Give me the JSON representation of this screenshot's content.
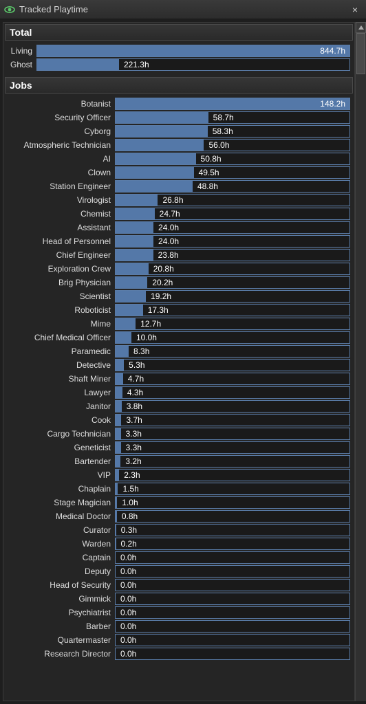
{
  "window": {
    "title": "Tracked Playtime",
    "close": "×"
  },
  "colors": {
    "bar_fill": "#5478a8",
    "bar_border": "#5a7ca8",
    "bg": "#1a1a1a"
  },
  "sections": {
    "total": {
      "header": "Total",
      "max": 844.7,
      "rows": [
        {
          "label": "Living",
          "value": 844.7,
          "text": "844.7h"
        },
        {
          "label": "Ghost",
          "value": 221.3,
          "text": "221.3h"
        }
      ]
    },
    "jobs": {
      "header": "Jobs",
      "max": 148.2,
      "rows": [
        {
          "label": "Botanist",
          "value": 148.2,
          "text": "148.2h"
        },
        {
          "label": "Security Officer",
          "value": 58.7,
          "text": "58.7h"
        },
        {
          "label": "Cyborg",
          "value": 58.3,
          "text": "58.3h"
        },
        {
          "label": "Atmospheric Technician",
          "value": 56.0,
          "text": "56.0h"
        },
        {
          "label": "AI",
          "value": 50.8,
          "text": "50.8h"
        },
        {
          "label": "Clown",
          "value": 49.5,
          "text": "49.5h"
        },
        {
          "label": "Station Engineer",
          "value": 48.8,
          "text": "48.8h"
        },
        {
          "label": "Virologist",
          "value": 26.8,
          "text": "26.8h"
        },
        {
          "label": "Chemist",
          "value": 24.7,
          "text": "24.7h"
        },
        {
          "label": "Assistant",
          "value": 24.0,
          "text": "24.0h"
        },
        {
          "label": "Head of Personnel",
          "value": 24.0,
          "text": "24.0h"
        },
        {
          "label": "Chief Engineer",
          "value": 23.8,
          "text": "23.8h"
        },
        {
          "label": "Exploration Crew",
          "value": 20.8,
          "text": "20.8h"
        },
        {
          "label": "Brig Physician",
          "value": 20.2,
          "text": "20.2h"
        },
        {
          "label": "Scientist",
          "value": 19.2,
          "text": "19.2h"
        },
        {
          "label": "Roboticist",
          "value": 17.3,
          "text": "17.3h"
        },
        {
          "label": "Mime",
          "value": 12.7,
          "text": "12.7h"
        },
        {
          "label": "Chief Medical Officer",
          "value": 10.0,
          "text": "10.0h"
        },
        {
          "label": "Paramedic",
          "value": 8.3,
          "text": "8.3h"
        },
        {
          "label": "Detective",
          "value": 5.3,
          "text": "5.3h"
        },
        {
          "label": "Shaft Miner",
          "value": 4.7,
          "text": "4.7h"
        },
        {
          "label": "Lawyer",
          "value": 4.3,
          "text": "4.3h"
        },
        {
          "label": "Janitor",
          "value": 3.8,
          "text": "3.8h"
        },
        {
          "label": "Cook",
          "value": 3.7,
          "text": "3.7h"
        },
        {
          "label": "Cargo Technician",
          "value": 3.3,
          "text": "3.3h"
        },
        {
          "label": "Geneticist",
          "value": 3.3,
          "text": "3.3h"
        },
        {
          "label": "Bartender",
          "value": 3.2,
          "text": "3.2h"
        },
        {
          "label": "VIP",
          "value": 2.3,
          "text": "2.3h"
        },
        {
          "label": "Chaplain",
          "value": 1.5,
          "text": "1.5h"
        },
        {
          "label": "Stage Magician",
          "value": 1.0,
          "text": "1.0h"
        },
        {
          "label": "Medical Doctor",
          "value": 0.8,
          "text": "0.8h"
        },
        {
          "label": "Curator",
          "value": 0.3,
          "text": "0.3h"
        },
        {
          "label": "Warden",
          "value": 0.2,
          "text": "0.2h"
        },
        {
          "label": "Captain",
          "value": 0.0,
          "text": "0.0h"
        },
        {
          "label": "Deputy",
          "value": 0.0,
          "text": "0.0h"
        },
        {
          "label": "Head of Security",
          "value": 0.0,
          "text": "0.0h"
        },
        {
          "label": "Gimmick",
          "value": 0.0,
          "text": "0.0h"
        },
        {
          "label": "Psychiatrist",
          "value": 0.0,
          "text": "0.0h"
        },
        {
          "label": "Barber",
          "value": 0.0,
          "text": "0.0h"
        },
        {
          "label": "Quartermaster",
          "value": 0.0,
          "text": "0.0h"
        },
        {
          "label": "Research Director",
          "value": 0.0,
          "text": "0.0h"
        }
      ]
    }
  }
}
